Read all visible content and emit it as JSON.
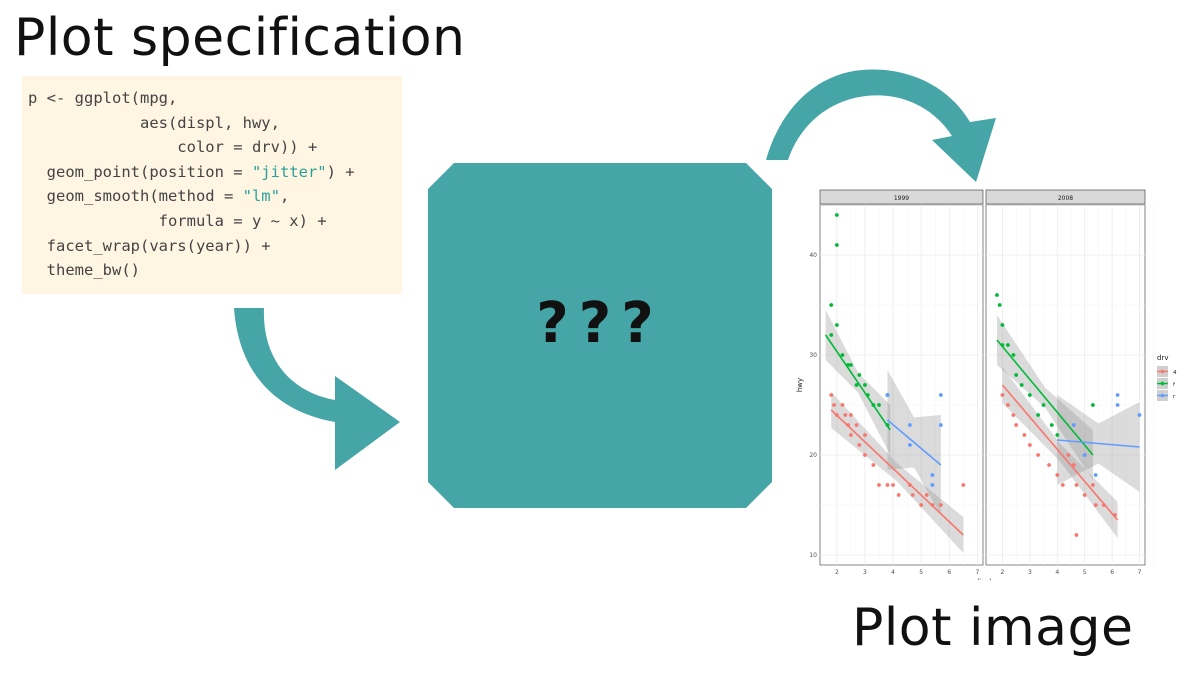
{
  "titles": {
    "spec": "Plot specification",
    "image": "Plot image",
    "black_box": "???"
  },
  "colors": {
    "teal": "#46a5a6",
    "code_bg": "#fff5e3",
    "code_text": "#444444",
    "code_string": "#2aa198",
    "drv_4": "#f8766d",
    "drv_f": "#00ba38",
    "drv_r": "#619cff"
  },
  "code_lines": [
    [
      {
        "t": "p <- ggplot(mpg,"
      }
    ],
    [
      {
        "t": "            aes(displ, hwy,"
      }
    ],
    [
      {
        "t": "                color = drv)) +"
      }
    ],
    [
      {
        "t": "  geom_point(position = "
      },
      {
        "t": "\"jitter\"",
        "s": true
      },
      {
        "t": ") +"
      }
    ],
    [
      {
        "t": "  geom_smooth(method = "
      },
      {
        "t": "\"lm\"",
        "s": true
      },
      {
        "t": ","
      }
    ],
    [
      {
        "t": "              formula = y ~ x) +"
      }
    ],
    [
      {
        "t": "  facet_wrap(vars(year)) +"
      }
    ],
    [
      {
        "t": "  theme_bw()"
      }
    ]
  ],
  "chart_data": {
    "type": "scatter",
    "facets": [
      "1999",
      "2008"
    ],
    "xlabel": "displ",
    "ylabel": "hwy",
    "xlim": [
      1.4,
      7.2
    ],
    "ylim": [
      9,
      45
    ],
    "xticks": [
      2,
      3,
      4,
      5,
      6,
      7
    ],
    "yticks": [
      10,
      20,
      30,
      40
    ],
    "legend": {
      "title": "drv",
      "position": "right",
      "entries": [
        "4",
        "f",
        "r"
      ]
    },
    "grid": true,
    "series": [
      {
        "name": "4",
        "color": "#f8766d",
        "panels": [
          {
            "points": [
              [
                1.8,
                26
              ],
              [
                1.9,
                25
              ],
              [
                2.0,
                24
              ],
              [
                2.2,
                25
              ],
              [
                2.3,
                24
              ],
              [
                2.4,
                23
              ],
              [
                2.5,
                22
              ],
              [
                2.5,
                24
              ],
              [
                2.7,
                23
              ],
              [
                2.8,
                21
              ],
              [
                3.0,
                20
              ],
              [
                3.0,
                22
              ],
              [
                3.3,
                19
              ],
              [
                3.5,
                17
              ],
              [
                3.8,
                17
              ],
              [
                4.0,
                17
              ],
              [
                4.2,
                16
              ],
              [
                4.6,
                17
              ],
              [
                4.7,
                16
              ],
              [
                5.0,
                15
              ],
              [
                5.2,
                16
              ],
              [
                5.4,
                15
              ],
              [
                5.7,
                15
              ],
              [
                6.5,
                17
              ]
            ],
            "fit": [
              [
                1.8,
                24.5
              ],
              [
                6.5,
                12.0
              ]
            ],
            "band": [
              0.9,
              1.8
            ]
          },
          {
            "points": [
              [
                2.0,
                26
              ],
              [
                2.2,
                25
              ],
              [
                2.4,
                24
              ],
              [
                2.5,
                23
              ],
              [
                2.8,
                22
              ],
              [
                3.0,
                21
              ],
              [
                3.3,
                20
              ],
              [
                3.7,
                19
              ],
              [
                4.0,
                18
              ],
              [
                4.2,
                17
              ],
              [
                4.4,
                20
              ],
              [
                4.6,
                19
              ],
              [
                4.7,
                17
              ],
              [
                4.7,
                12
              ],
              [
                5.0,
                16
              ],
              [
                5.3,
                17
              ],
              [
                5.4,
                15
              ],
              [
                5.7,
                15
              ],
              [
                6.1,
                14
              ]
            ],
            "fit": [
              [
                2.0,
                27.0
              ],
              [
                6.2,
                13.5
              ]
            ],
            "band": [
              0.9,
              1.8
            ]
          }
        ]
      },
      {
        "name": "f",
        "color": "#00ba38",
        "panels": [
          {
            "points": [
              [
                1.8,
                32
              ],
              [
                1.8,
                35
              ],
              [
                2.0,
                44
              ],
              [
                2.0,
                41
              ],
              [
                2.0,
                33
              ],
              [
                2.2,
                30
              ],
              [
                2.4,
                29
              ],
              [
                2.5,
                29
              ],
              [
                2.7,
                27
              ],
              [
                2.8,
                28
              ],
              [
                3.0,
                27
              ],
              [
                3.1,
                26
              ],
              [
                3.3,
                25
              ],
              [
                3.5,
                25
              ],
              [
                3.8,
                23
              ],
              [
                3.8,
                26
              ]
            ],
            "fit": [
              [
                1.6,
                32.0
              ],
              [
                3.9,
                22.5
              ]
            ],
            "band": [
              1.0,
              2.5
            ]
          },
          {
            "points": [
              [
                1.8,
                36
              ],
              [
                1.9,
                35
              ],
              [
                2.0,
                33
              ],
              [
                2.0,
                31
              ],
              [
                2.2,
                31
              ],
              [
                2.4,
                30
              ],
              [
                2.5,
                28
              ],
              [
                2.7,
                27
              ],
              [
                3.0,
                26
              ],
              [
                3.3,
                24
              ],
              [
                3.5,
                25
              ],
              [
                3.8,
                23
              ],
              [
                4.0,
                22
              ],
              [
                5.3,
                25
              ]
            ],
            "fit": [
              [
                1.8,
                31.5
              ],
              [
                5.3,
                20.0
              ]
            ],
            "band": [
              1.0,
              2.5
            ]
          }
        ]
      },
      {
        "name": "r",
        "color": "#619cff",
        "panels": [
          {
            "points": [
              [
                3.8,
                26
              ],
              [
                4.6,
                23
              ],
              [
                4.6,
                21
              ],
              [
                5.4,
                18
              ],
              [
                5.4,
                17
              ],
              [
                5.7,
                23
              ],
              [
                5.7,
                26
              ]
            ],
            "fit": [
              [
                3.8,
                23.5
              ],
              [
                5.7,
                19.0
              ]
            ],
            "band": [
              2.5,
              5.0
            ]
          },
          {
            "points": [
              [
                4.6,
                23
              ],
              [
                5.0,
                20
              ],
              [
                5.4,
                18
              ],
              [
                6.2,
                26
              ],
              [
                6.2,
                25
              ],
              [
                7.0,
                24
              ]
            ],
            "fit": [
              [
                4.0,
                21.5
              ],
              [
                7.0,
                20.8
              ]
            ],
            "band": [
              2.0,
              4.5
            ]
          }
        ]
      }
    ]
  }
}
